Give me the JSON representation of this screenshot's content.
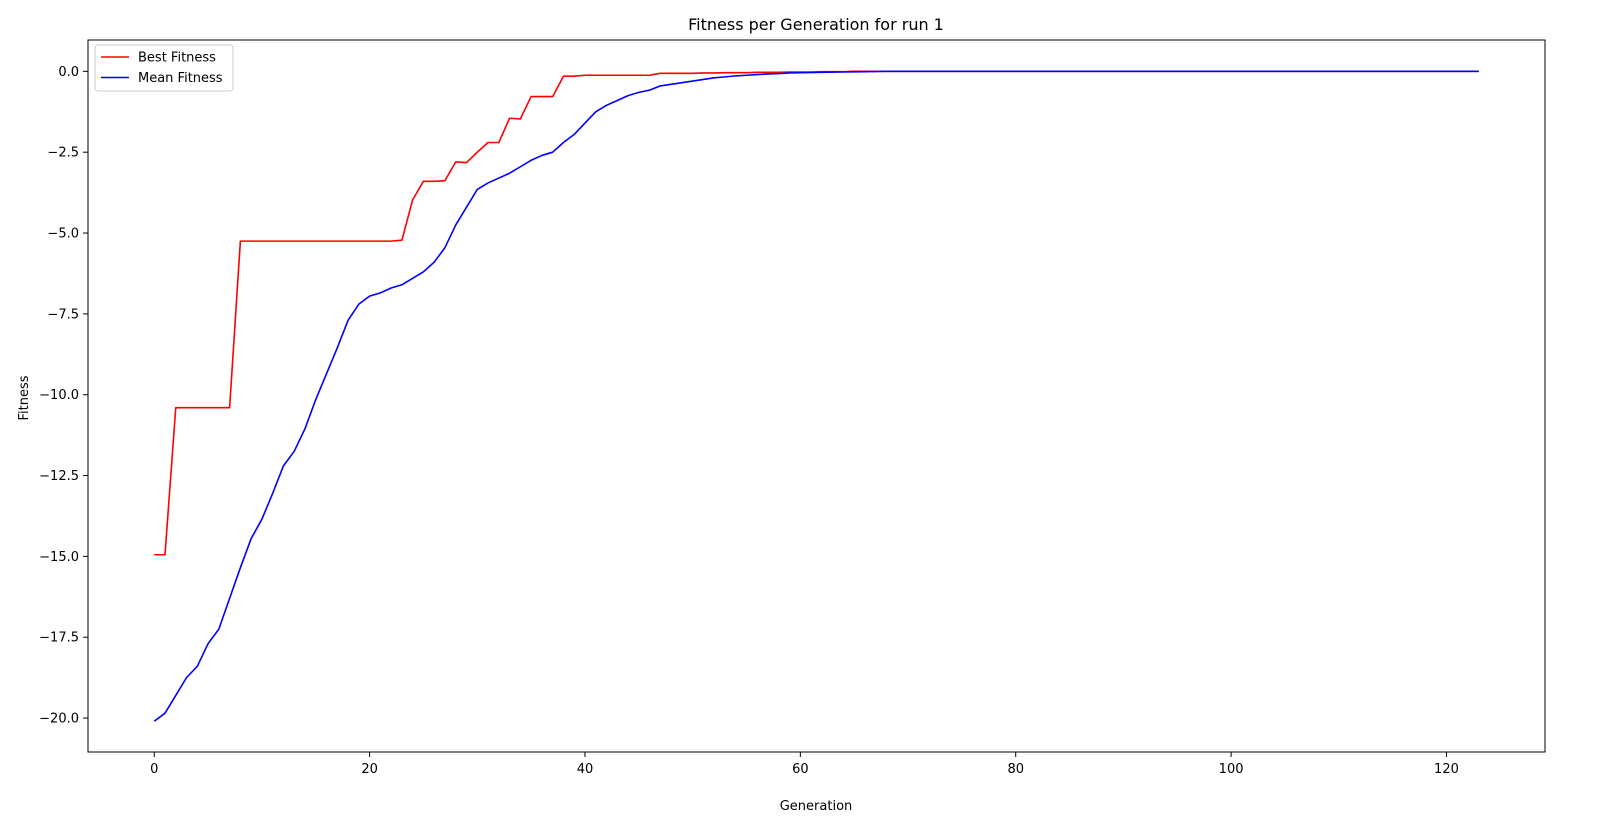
{
  "chart_data": {
    "type": "line",
    "title": "Fitness per Generation for run 1",
    "xlabel": "Generation",
    "ylabel": "Fitness",
    "xlim": [
      -6.15,
      129.15
    ],
    "ylim": [
      -21.05,
      0.97
    ],
    "xticks": [
      0,
      20,
      40,
      60,
      80,
      100,
      120
    ],
    "yticks": [
      0.0,
      -2.5,
      -5.0,
      -7.5,
      -10.0,
      -12.5,
      -15.0,
      -17.5,
      -20.0
    ],
    "grid": false,
    "legend_position": "top-left",
    "series": [
      {
        "name": "Best Fitness",
        "color": "#ff0000",
        "x": [
          0,
          1,
          2,
          3,
          4,
          5,
          6,
          7,
          8,
          9,
          10,
          11,
          12,
          13,
          14,
          15,
          16,
          17,
          18,
          19,
          20,
          21,
          22,
          23,
          24,
          25,
          26,
          27,
          28,
          29,
          30,
          31,
          32,
          33,
          34,
          35,
          36,
          37,
          38,
          39,
          40,
          41,
          42,
          43,
          44,
          45,
          46,
          47,
          48,
          49,
          50,
          51,
          52,
          53,
          54,
          55,
          56,
          57,
          58,
          59,
          60,
          61,
          62,
          63,
          64,
          65,
          70,
          80,
          90,
          100,
          110,
          120,
          123
        ],
        "y": [
          -14.95,
          -14.95,
          -10.4,
          -10.4,
          -10.4,
          -10.4,
          -10.4,
          -10.4,
          -5.25,
          -5.25,
          -5.25,
          -5.25,
          -5.25,
          -5.25,
          -5.25,
          -5.25,
          -5.25,
          -5.25,
          -5.25,
          -5.25,
          -5.25,
          -5.25,
          -5.25,
          -5.22,
          -3.97,
          -3.4,
          -3.4,
          -3.38,
          -2.8,
          -2.82,
          -2.5,
          -2.2,
          -2.2,
          -1.45,
          -1.47,
          -0.78,
          -0.78,
          -0.78,
          -0.15,
          -0.15,
          -0.12,
          -0.12,
          -0.12,
          -0.12,
          -0.12,
          -0.12,
          -0.12,
          -0.06,
          -0.06,
          -0.06,
          -0.06,
          -0.05,
          -0.05,
          -0.04,
          -0.04,
          -0.04,
          -0.03,
          -0.03,
          -0.03,
          -0.02,
          -0.02,
          -0.02,
          -0.01,
          -0.01,
          -0.01,
          0,
          0,
          0,
          0,
          0,
          0,
          0,
          0
        ]
      },
      {
        "name": "Mean Fitness",
        "color": "#0000ff",
        "x": [
          0,
          1,
          2,
          3,
          4,
          5,
          6,
          7,
          8,
          9,
          10,
          11,
          12,
          13,
          14,
          15,
          16,
          17,
          18,
          19,
          20,
          21,
          22,
          23,
          24,
          25,
          26,
          27,
          28,
          29,
          30,
          31,
          32,
          33,
          34,
          35,
          36,
          37,
          38,
          39,
          40,
          41,
          42,
          43,
          44,
          45,
          46,
          47,
          48,
          49,
          50,
          51,
          52,
          53,
          54,
          55,
          56,
          57,
          58,
          59,
          60,
          62,
          64,
          66,
          68,
          70,
          80,
          90,
          100,
          110,
          120,
          123
        ],
        "y": [
          -20.1,
          -19.85,
          -19.3,
          -18.75,
          -18.4,
          -17.7,
          -17.25,
          -16.3,
          -15.35,
          -14.45,
          -13.85,
          -13.05,
          -12.2,
          -11.75,
          -11.05,
          -10.15,
          -9.35,
          -8.55,
          -7.7,
          -7.2,
          -6.95,
          -6.85,
          -6.7,
          -6.6,
          -6.4,
          -6.2,
          -5.9,
          -5.45,
          -4.75,
          -4.2,
          -3.65,
          -3.45,
          -3.3,
          -3.15,
          -2.95,
          -2.75,
          -2.6,
          -2.5,
          -2.2,
          -1.95,
          -1.6,
          -1.25,
          -1.05,
          -0.9,
          -0.75,
          -0.65,
          -0.58,
          -0.45,
          -0.4,
          -0.35,
          -0.3,
          -0.25,
          -0.2,
          -0.17,
          -0.14,
          -0.12,
          -0.1,
          -0.08,
          -0.07,
          -0.05,
          -0.04,
          -0.03,
          -0.02,
          -0.01,
          0,
          0,
          0,
          0,
          0,
          0,
          0,
          0
        ]
      }
    ]
  }
}
